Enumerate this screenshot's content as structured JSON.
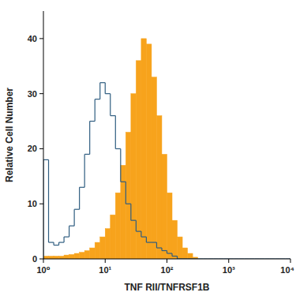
{
  "chart_data": {
    "type": "histogram",
    "x_label": "TNF RII/TNFRSF1B",
    "y_label": "Relative Cell Number",
    "log": "x",
    "xlim": [
      1,
      10000
    ],
    "ylim": [
      0,
      45
    ],
    "xticks": [
      {
        "value": 1,
        "label": "10⁰"
      },
      {
        "value": 10,
        "label": "10¹"
      },
      {
        "value": 100,
        "label": "10²"
      },
      {
        "value": 1000,
        "label": "10³"
      },
      {
        "value": 10000,
        "label": "10⁴"
      }
    ],
    "yticks": [
      0,
      10,
      20,
      30,
      40
    ],
    "bins": [
      1,
      1.2115,
      1.4678,
      1.7783,
      2.1544,
      2.6102,
      3.1623,
      3.8312,
      4.6416,
      5.6234,
      6.8129,
      8.254,
      10,
      12.115,
      14.678,
      17.783,
      21.544,
      26.102,
      31.623,
      38.312,
      46.416,
      56.234,
      68.129,
      82.54,
      100,
      121.15,
      146.78,
      177.83,
      215.44,
      261.02,
      316.23,
      383.12,
      464.16,
      562.34,
      681.29,
      825.4,
      1000,
      1211.5,
      1467.8,
      1778.3,
      2154.4,
      2610.2,
      3162.3,
      3831.2,
      4641.6,
      5623.4,
      6812.9,
      8254,
      10000
    ],
    "series": [
      {
        "type": "step",
        "color": "#2f5d80",
        "values": [
          18,
          3,
          2.5,
          3,
          4,
          6,
          9,
          13,
          19,
          25,
          29,
          32,
          30,
          26,
          20,
          14,
          10,
          7,
          5,
          4,
          3,
          3,
          2,
          1.5,
          1,
          0.5,
          0,
          0,
          0,
          0,
          0,
          0,
          0,
          0,
          0,
          0,
          0,
          0,
          0,
          0,
          0,
          0,
          0,
          0,
          0,
          0,
          0,
          0
        ]
      },
      {
        "type": "filled",
        "color": "#f7a31c",
        "values": [
          0.5,
          0.5,
          0.5,
          0.5,
          0.7,
          0.8,
          1,
          1.2,
          1.5,
          2,
          3,
          4,
          5.5,
          8,
          12,
          17,
          23,
          30,
          36,
          40,
          39,
          33,
          26,
          19,
          12,
          7,
          4,
          2,
          1,
          0.3,
          0,
          0,
          0,
          0,
          0,
          0,
          0,
          0,
          0,
          0,
          0,
          0,
          0,
          0,
          0,
          0,
          0,
          0
        ]
      }
    ]
  }
}
